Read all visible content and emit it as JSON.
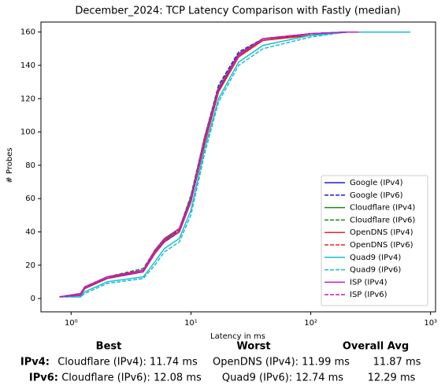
{
  "chart_data": {
    "type": "line",
    "title": "December_2024: TCP Latency Comparison with Fastly (median)",
    "xlabel": "Latency in ms",
    "ylabel": "# Probes",
    "xscale": "log",
    "xlim": [
      0.56,
      1100
    ],
    "ylim": [
      -8,
      166
    ],
    "xticks": [
      {
        "value": 1,
        "label": "10⁰"
      },
      {
        "value": 10,
        "label": "10¹"
      },
      {
        "value": 100,
        "label": "10²"
      },
      {
        "value": 1000,
        "label": "10³"
      }
    ],
    "yticks": [
      0,
      20,
      40,
      60,
      80,
      100,
      120,
      140,
      160
    ],
    "legend": "lower right",
    "series": [
      {
        "name": "Google (IPv4)",
        "color": "#1f1fc8",
        "dash": false,
        "x": [
          0.8,
          1.2,
          1.3,
          2,
          4,
          5,
          6,
          8,
          10,
          13,
          17,
          25,
          40,
          100,
          200,
          650
        ],
        "values": [
          1,
          2,
          6,
          12,
          16,
          27,
          34,
          40,
          58,
          95,
          125,
          146,
          155,
          159,
          160,
          160
        ]
      },
      {
        "name": "Google (IPv6)",
        "color": "#1f1fc8",
        "dash": true,
        "x": [
          0.8,
          1.2,
          1.3,
          2,
          4,
          5,
          6,
          8,
          10,
          13,
          17,
          25,
          40,
          100,
          200,
          600
        ],
        "values": [
          1,
          3,
          7,
          13,
          17,
          28,
          35,
          41,
          60,
          97,
          128,
          148,
          156,
          159,
          160,
          160
        ]
      },
      {
        "name": "Cloudflare (IPv4)",
        "color": "#1a8a1a",
        "dash": false,
        "x": [
          0.8,
          1.2,
          1.3,
          2,
          4,
          5,
          6,
          8,
          10,
          13,
          17,
          25,
          40,
          100,
          200,
          300
        ],
        "values": [
          1,
          2,
          6,
          12,
          17,
          28,
          35,
          42,
          61,
          96,
          126,
          146,
          155,
          158,
          160,
          160
        ]
      },
      {
        "name": "Cloudflare (IPv6)",
        "color": "#1a8a1a",
        "dash": true,
        "x": [
          0.8,
          1.2,
          1.3,
          2,
          4,
          5,
          6,
          8,
          10,
          13,
          17,
          25,
          40,
          100,
          200,
          350
        ],
        "values": [
          1,
          3,
          7,
          13,
          18,
          29,
          36,
          42,
          62,
          97,
          127,
          147,
          156,
          159,
          160,
          160
        ]
      },
      {
        "name": "OpenDNS (IPv4)",
        "color": "#e8272a",
        "dash": false,
        "x": [
          0.8,
          1.2,
          1.3,
          2,
          4,
          5,
          6,
          8,
          10,
          13,
          17,
          25,
          40,
          100,
          200,
          400
        ],
        "values": [
          1,
          2,
          6,
          13,
          16,
          27,
          35,
          40,
          58,
          93,
          124,
          145,
          155,
          158,
          160,
          160
        ]
      },
      {
        "name": "OpenDNS (IPv6)",
        "color": "#e8272a",
        "dash": true,
        "x": [
          0.8,
          1.2,
          1.3,
          2,
          4,
          5,
          6,
          8,
          10,
          13,
          17,
          25,
          40,
          100,
          200,
          450
        ],
        "values": [
          1,
          2,
          7,
          12,
          17,
          28,
          34,
          41,
          59,
          95,
          126,
          146,
          155,
          159,
          160,
          160
        ]
      },
      {
        "name": "Quad9 (IPv4)",
        "color": "#17bfcf",
        "dash": false,
        "x": [
          0.8,
          1.2,
          1.3,
          2,
          4,
          5,
          6,
          8,
          10,
          13,
          17,
          25,
          40,
          100,
          200,
          650
        ],
        "values": [
          1,
          1,
          4,
          10,
          13,
          22,
          30,
          36,
          53,
          90,
          120,
          142,
          152,
          158,
          160,
          160
        ]
      },
      {
        "name": "Quad9 (IPv6)",
        "color": "#17bfcf",
        "dash": true,
        "x": [
          0.8,
          1.2,
          1.3,
          2,
          4,
          5,
          6,
          8,
          10,
          13,
          17,
          25,
          40,
          100,
          200,
          700
        ],
        "values": [
          1,
          1,
          3,
          9,
          12,
          20,
          28,
          34,
          50,
          87,
          118,
          140,
          150,
          157,
          160,
          160
        ]
      },
      {
        "name": "ISP (IPv4)",
        "color": "#c01cc0",
        "dash": false,
        "x": [
          0.8,
          1.2,
          1.3,
          2,
          4,
          5,
          6,
          8,
          10,
          13,
          17,
          25,
          40,
          100,
          200,
          250
        ],
        "values": [
          1,
          3,
          7,
          13,
          17,
          29,
          36,
          42,
          60,
          96,
          126,
          146,
          156,
          159,
          160,
          160
        ]
      },
      {
        "name": "ISP (IPv6)",
        "color": "#c01cc0",
        "dash": true,
        "x": [
          0.8,
          1.2,
          1.3,
          2,
          4,
          5,
          6,
          8,
          10,
          13,
          17,
          25,
          40,
          100,
          200,
          220
        ],
        "values": [
          1,
          2,
          6,
          12,
          16,
          27,
          34,
          40,
          58,
          95,
          126,
          147,
          156,
          159,
          160,
          160
        ]
      }
    ],
    "summary": {
      "columns": [
        "Best",
        "Worst",
        "Overall Avg"
      ],
      "rows": [
        {
          "label": "IPv4:",
          "best": "Cloudflare (IPv4): 11.74 ms",
          "worst": "OpenDNS (IPv4): 11.99 ms",
          "avg": "11.87 ms"
        },
        {
          "label": "IPv6:",
          "best": "Cloudflare (IPv6): 12.08 ms",
          "worst": "Quad9 (IPv6): 12.74 ms",
          "avg": "12.29 ms"
        }
      ]
    }
  }
}
